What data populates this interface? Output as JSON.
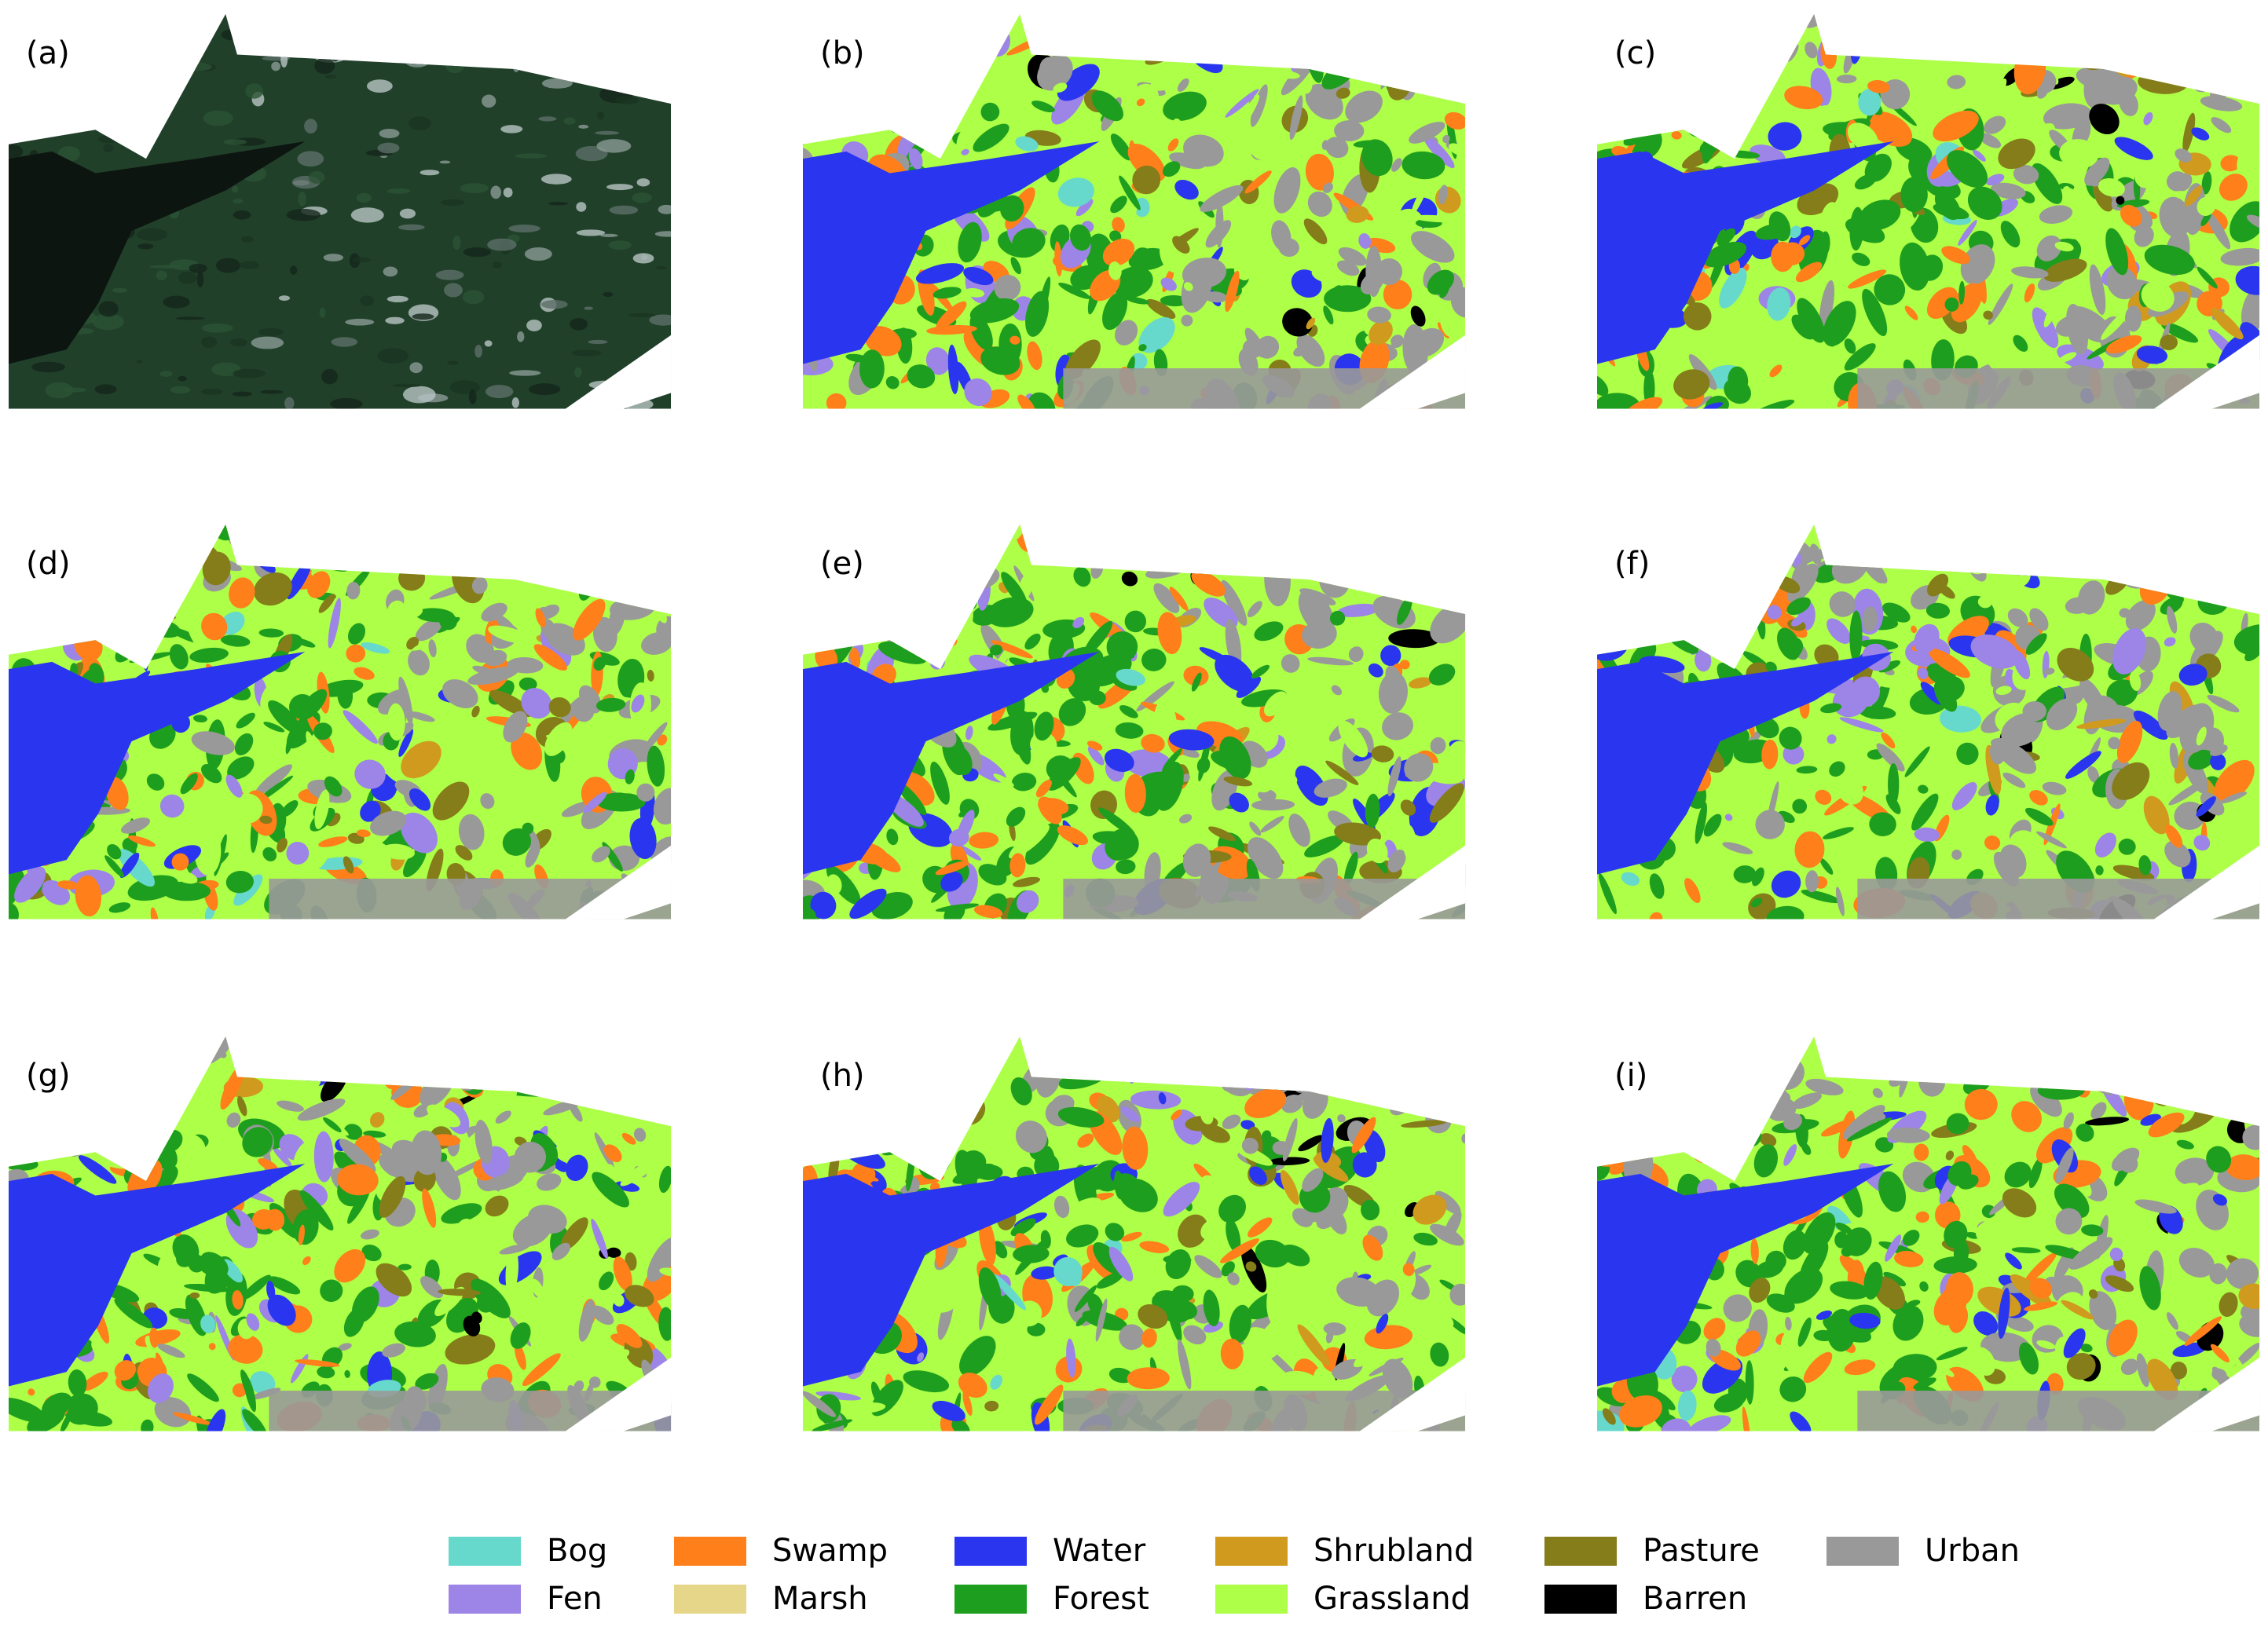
{
  "panels": [
    {
      "label": "(a)"
    },
    {
      "label": "(b)"
    },
    {
      "label": "(c)"
    },
    {
      "label": "(d)"
    },
    {
      "label": "(e)"
    },
    {
      "label": "(f)"
    },
    {
      "label": "(g)"
    },
    {
      "label": "(h)"
    },
    {
      "label": "(i)"
    }
  ],
  "legend": [
    {
      "label": "Bog",
      "color": "#66d9cc"
    },
    {
      "label": "Fen",
      "color": "#9c85e6"
    },
    {
      "label": "Swamp",
      "color": "#ff7f1a"
    },
    {
      "label": "Marsh",
      "color": "#e6d68a"
    },
    {
      "label": "Water",
      "color": "#2a35f0"
    },
    {
      "label": "Forest",
      "color": "#1e9e1e"
    },
    {
      "label": "Shrubland",
      "color": "#d09a1e"
    },
    {
      "label": "Grassland",
      "color": "#adff47"
    },
    {
      "label": "Pasture",
      "color": "#857c1a"
    },
    {
      "label": "Barren",
      "color": "#000000"
    },
    {
      "label": "Urban",
      "color": "#999999"
    }
  ]
}
